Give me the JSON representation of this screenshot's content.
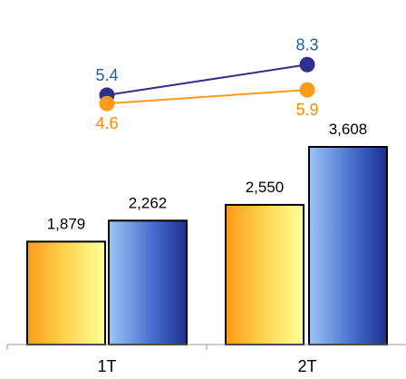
{
  "chart_data": {
    "type": "bar",
    "categories": [
      "1T",
      "2T"
    ],
    "bar_series": [
      {
        "values": [
          1879,
          2262,
          2550,
          3608
        ],
        "value_labels": [
          "1,879",
          "2,262",
          "2,550",
          "3,608"
        ]
      }
    ],
    "bars": [
      {
        "category": "1T",
        "value": 1879,
        "label": "1,879",
        "style": "orange"
      },
      {
        "category": "1T",
        "value": 2262,
        "label": "2,262",
        "style": "blue"
      },
      {
        "category": "2T",
        "value": 2550,
        "label": "2,550",
        "style": "orange"
      },
      {
        "category": "2T",
        "value": 3608,
        "label": "3,608",
        "style": "blue"
      }
    ],
    "line_series": [
      {
        "color": "#2f2f8f",
        "label_color": "#1f5fa8",
        "values": [
          5.4,
          8.3
        ],
        "labels": [
          "5.4",
          "8.3"
        ]
      },
      {
        "color": "#ff9a1a",
        "label_color": "#ff8a00",
        "values": [
          4.6,
          5.9
        ],
        "labels": [
          "4.6",
          "5.9"
        ]
      }
    ],
    "grid": false,
    "legend": "none"
  }
}
